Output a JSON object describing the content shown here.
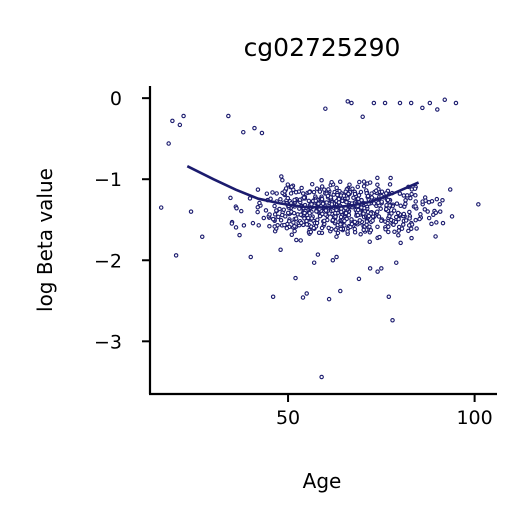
{
  "chart_data": {
    "type": "scatter",
    "title": "cg02725290",
    "xlabel": "Age",
    "ylabel": "log Beta value",
    "xlim": [
      13,
      106
    ],
    "ylim": [
      -3.65,
      0.15
    ],
    "xticks": [
      50,
      100
    ],
    "xtick_labels": [
      "50",
      "100"
    ],
    "yticks": [
      0,
      -1,
      -2,
      -3
    ],
    "ytick_labels": [
      "0",
      "−1",
      "−2",
      "−3"
    ],
    "grid": false,
    "legend": "none",
    "point_color": "#1b1b6e",
    "line_color": "#1b1b6e",
    "trend": {
      "x": [
        23,
        30,
        36,
        42,
        48,
        54,
        60,
        66,
        72,
        78,
        85
      ],
      "y": [
        -0.84,
        -1.0,
        -1.13,
        -1.24,
        -1.3,
        -1.34,
        -1.35,
        -1.33,
        -1.28,
        -1.18,
        -1.04
      ]
    },
    "outliers": {
      "x": [
        16,
        18,
        19,
        20,
        21,
        22,
        24,
        27,
        34,
        35,
        37,
        38,
        40,
        41,
        43,
        45,
        46,
        48,
        52,
        54,
        55,
        57,
        58,
        59,
        60,
        61,
        62,
        63,
        64,
        66,
        67,
        69,
        70,
        72,
        73,
        74,
        75,
        76,
        77,
        78,
        79,
        80,
        83,
        86,
        88,
        90,
        92,
        95,
        101
      ],
      "y": [
        -1.35,
        -0.56,
        -0.28,
        -1.94,
        -0.33,
        -0.22,
        -1.4,
        -1.71,
        -0.22,
        -1.53,
        -1.69,
        -0.42,
        -1.96,
        -0.37,
        -0.43,
        -1.58,
        -2.45,
        -1.87,
        -2.22,
        -2.46,
        -2.41,
        -2.03,
        -1.93,
        -3.44,
        -0.13,
        -2.48,
        -2.0,
        -1.96,
        -2.38,
        -0.04,
        -0.06,
        -2.23,
        -0.23,
        -2.1,
        -0.06,
        -2.14,
        -2.1,
        -0.06,
        -2.45,
        -2.74,
        -2.03,
        -0.06,
        -0.06,
        -0.12,
        -0.06,
        -0.14,
        -0.02,
        -0.06,
        -1.31
      ]
    },
    "cluster": {
      "n": 640,
      "x_range": [
        24,
        96
      ],
      "y_center": -1.38,
      "y_spread": 0.16
    }
  }
}
